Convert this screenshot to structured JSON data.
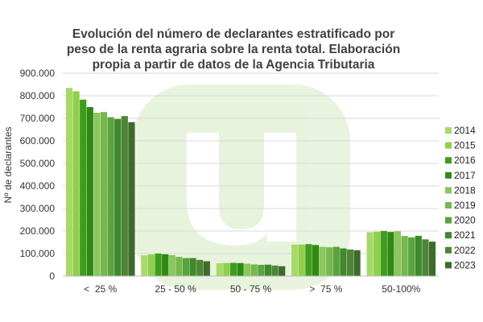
{
  "chart_data": {
    "type": "bar",
    "title_lines": [
      "Evolución del número de declarantes estratificado por",
      "peso de la renta agraria sobre la renta total. Elaboración",
      "propia a partir de datos de la Agencia Tributaria"
    ],
    "ylabel": "Nº de declarantes",
    "xlabel": "",
    "ylim": [
      0,
      900000
    ],
    "yticks": [
      0,
      100000,
      200000,
      300000,
      400000,
      500000,
      600000,
      700000,
      800000,
      900000
    ],
    "ytick_labels": [
      "0",
      "100.000",
      "200.000",
      "300.000",
      "400.000",
      "500.000",
      "600.000",
      "700.000",
      "800.000",
      "900.000"
    ],
    "grid": true,
    "legend_position": "right",
    "categories": [
      "<  25 %",
      "25 - 50 %",
      "50 - 75 %",
      ">  75 %",
      "50-100%"
    ],
    "series": [
      {
        "name": "2014",
        "color": "#a6d96a",
        "values": [
          835000,
          92000,
          57000,
          140000,
          195000
        ]
      },
      {
        "name": "2015",
        "color": "#8fcf4a",
        "values": [
          820000,
          96000,
          58000,
          140000,
          197000
        ]
      },
      {
        "name": "2016",
        "color": "#3f9c1e",
        "values": [
          783000,
          100000,
          59000,
          142000,
          200000
        ]
      },
      {
        "name": "2017",
        "color": "#2f8a14",
        "values": [
          750000,
          97000,
          58000,
          138000,
          196000
        ]
      },
      {
        "name": "2018",
        "color": "#8cc65f",
        "values": [
          725000,
          93000,
          55000,
          130000,
          199000
        ]
      },
      {
        "name": "2019",
        "color": "#77b74e",
        "values": [
          728000,
          85000,
          52000,
          128000,
          178000
        ]
      },
      {
        "name": "2020",
        "color": "#5aa33d",
        "values": [
          705000,
          80000,
          50000,
          130000,
          172000
        ]
      },
      {
        "name": "2021",
        "color": "#3f8a2c",
        "values": [
          697000,
          80000,
          51000,
          123000,
          179000
        ]
      },
      {
        "name": "2022",
        "color": "#4f8536",
        "values": [
          710000,
          72000,
          47000,
          118000,
          163000
        ]
      },
      {
        "name": "2023",
        "color": "#3d6b2b",
        "values": [
          683000,
          66000,
          44000,
          115000,
          153000
        ]
      }
    ]
  }
}
